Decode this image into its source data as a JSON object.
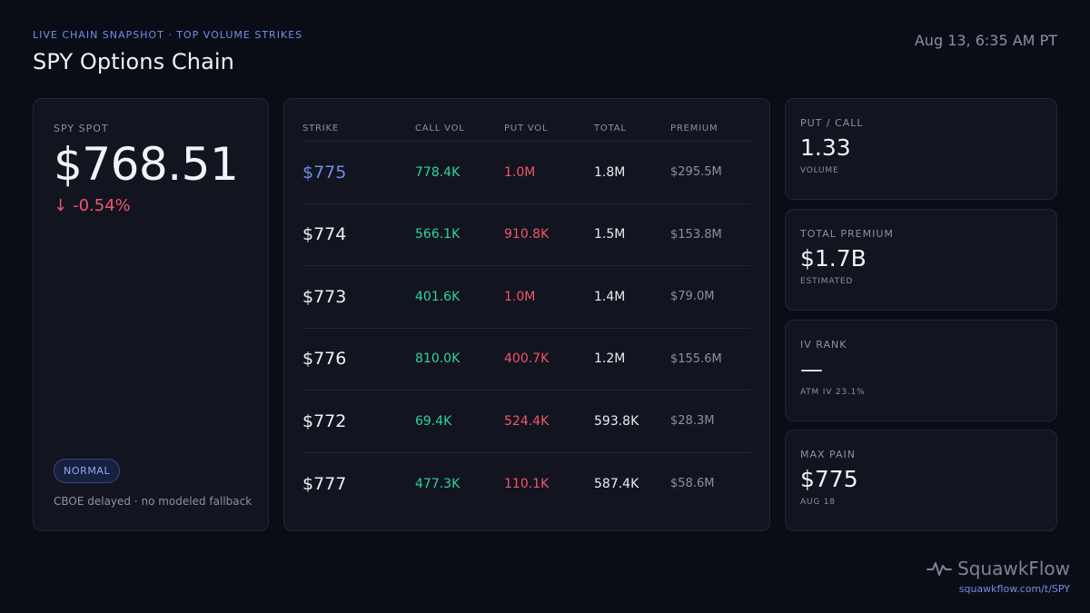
{
  "header": {
    "eyebrow": "LIVE CHAIN SNAPSHOT · TOP VOLUME STRIKES",
    "title": "SPY Options Chain",
    "timestamp": "Aug 13, 6:35 AM PT"
  },
  "spot": {
    "label": "SPY SPOT",
    "price": "$768.51",
    "change": "-0.54%",
    "change_icon": "arrow-down-icon",
    "badge": "NORMAL",
    "note": "CBOE delayed · no modeled fallback"
  },
  "table": {
    "columns": [
      "STRIKE",
      "CALL VOL",
      "PUT VOL",
      "TOTAL",
      "PREMIUM"
    ],
    "rows": [
      {
        "strike": "$775",
        "call": "778.4K",
        "put": "1.0M",
        "total": "1.8M",
        "premium": "$295.5M"
      },
      {
        "strike": "$774",
        "call": "566.1K",
        "put": "910.8K",
        "total": "1.5M",
        "premium": "$153.8M"
      },
      {
        "strike": "$773",
        "call": "401.6K",
        "put": "1.0M",
        "total": "1.4M",
        "premium": "$79.0M"
      },
      {
        "strike": "$776",
        "call": "810.0K",
        "put": "400.7K",
        "total": "1.2M",
        "premium": "$155.6M"
      },
      {
        "strike": "$772",
        "call": "69.4K",
        "put": "524.4K",
        "total": "593.8K",
        "premium": "$28.3M"
      },
      {
        "strike": "$777",
        "call": "477.3K",
        "put": "110.1K",
        "total": "587.4K",
        "premium": "$58.6M"
      }
    ]
  },
  "stats": [
    {
      "label": "PUT / CALL",
      "value": "1.33",
      "sub": "VOLUME"
    },
    {
      "label": "TOTAL PREMIUM",
      "value": "$1.7B",
      "sub": "ESTIMATED"
    },
    {
      "label": "IV RANK",
      "value": "—",
      "sub": "ATM IV 23.1%"
    },
    {
      "label": "MAX PAIN",
      "value": "$775",
      "sub": "AUG 18"
    }
  ],
  "brand": {
    "name": "SquawkFlow",
    "url": "squawkflow.com/t/SPY",
    "icon": "pulse-icon"
  },
  "colors": {
    "accent": "#6f8fe6",
    "call": "#2dd4a0",
    "put": "#f0566e",
    "background": "#0b0d16",
    "card": "#12141f"
  }
}
